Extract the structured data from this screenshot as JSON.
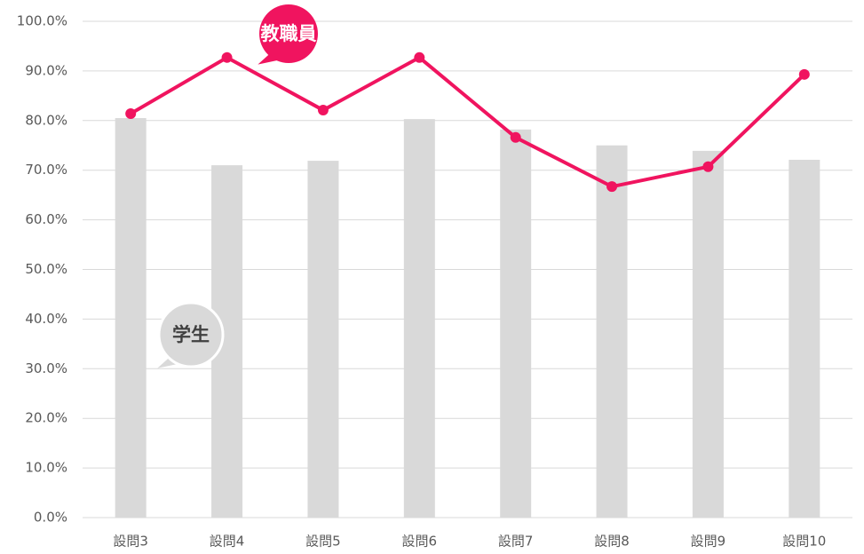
{
  "chart_data": {
    "type": "combo",
    "categories": [
      "設問3",
      "設問4",
      "設問5",
      "設問6",
      "設問7",
      "設問8",
      "設問9",
      "設問10"
    ],
    "series": [
      {
        "name": "学生",
        "type": "bar",
        "color": "#d9d9d9",
        "values": [
          80.5,
          71.0,
          71.9,
          80.3,
          78.2,
          75.0,
          73.9,
          72.1
        ]
      },
      {
        "name": "教職員",
        "type": "line",
        "color": "#f0145f",
        "values": [
          81.4,
          92.7,
          82.1,
          92.7,
          76.6,
          66.7,
          70.7,
          89.3
        ]
      }
    ],
    "ylim": [
      0,
      100
    ],
    "yticks": [
      {
        "value": 0,
        "label": "0.0%"
      },
      {
        "value": 10,
        "label": "10.0%"
      },
      {
        "value": 20,
        "label": "20.0%"
      },
      {
        "value": 30,
        "label": "30.0%"
      },
      {
        "value": 40,
        "label": "40.0%"
      },
      {
        "value": 50,
        "label": "50.0%"
      },
      {
        "value": 60,
        "label": "60.0%"
      },
      {
        "value": 70,
        "label": "70.0%"
      },
      {
        "value": 80,
        "label": "80.0%"
      },
      {
        "value": 90,
        "label": "90.0%"
      },
      {
        "value": 100,
        "label": "100.0%"
      }
    ],
    "grid": true
  }
}
